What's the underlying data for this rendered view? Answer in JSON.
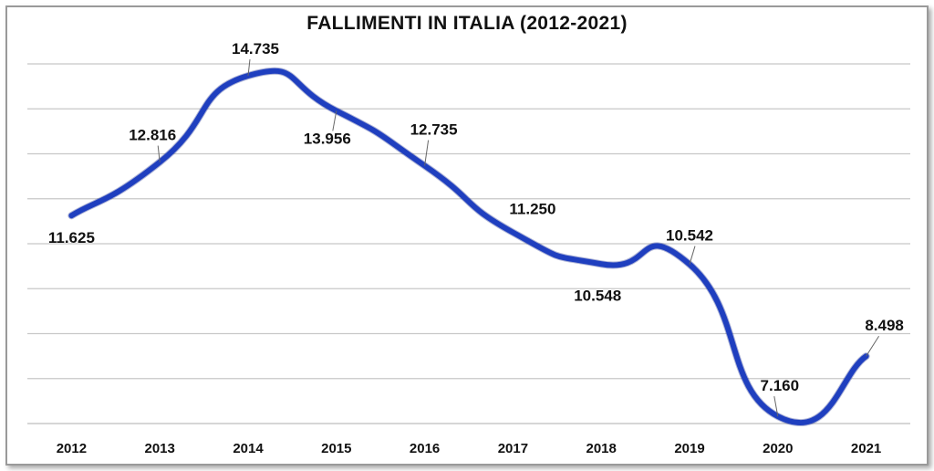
{
  "chart_data": {
    "type": "line",
    "title": "FALLIMENTI IN ITALIA (2012-2021)",
    "xlabel": "",
    "ylabel": "",
    "categories": [
      "2012",
      "2013",
      "2014",
      "2015",
      "2016",
      "2017",
      "2018",
      "2019",
      "2020",
      "2021"
    ],
    "series": [
      {
        "values": [
          11625,
          12816,
          14735,
          13956,
          12735,
          11250,
          10548,
          10542,
          7160,
          8498
        ],
        "labels": [
          "11.625",
          "12.816",
          "14.735",
          "13.956",
          "12.735",
          "11.250",
          "10.548",
          "10.542",
          "7.160",
          "8.498"
        ]
      }
    ],
    "ylim": [
      7000,
      15000
    ],
    "grid": true,
    "smooth": true,
    "legend": "none",
    "colors": {
      "line": "#1f3fbf",
      "grid": "#c8c8c8",
      "leader": "#666666"
    }
  }
}
